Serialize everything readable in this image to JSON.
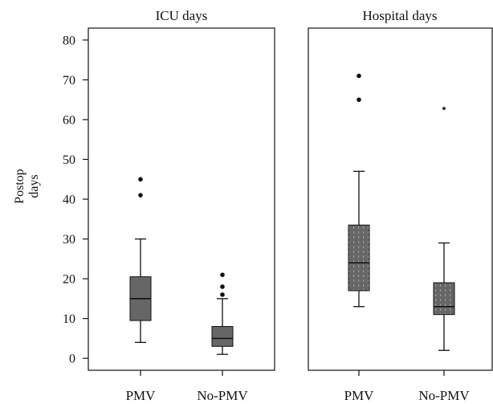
{
  "chart_data": {
    "type": "boxplot",
    "ylabel_lines": [
      "Postop",
      "days"
    ],
    "ylim": [
      -3,
      83
    ],
    "y_ticks": [
      0,
      10,
      20,
      30,
      40,
      50,
      60,
      70,
      80
    ],
    "categories": [
      "PMV",
      "No-PMV"
    ],
    "panels": [
      {
        "title": "ICU days",
        "box_style": "solid",
        "boxes": [
          {
            "category": "PMV",
            "whisker_low": 4,
            "q1": 9.5,
            "median": 15,
            "q3": 20.5,
            "whisker_high": 30,
            "outliers": [
              {
                "value": 41,
                "marker": "dot"
              },
              {
                "value": 45,
                "marker": "dot"
              }
            ]
          },
          {
            "category": "No-PMV",
            "whisker_low": 1,
            "q1": 3,
            "median": 5,
            "q3": 8,
            "whisker_high": 15,
            "outliers": [
              {
                "value": 16,
                "marker": "dot"
              },
              {
                "value": 18,
                "marker": "dot"
              },
              {
                "value": 21,
                "marker": "dot"
              }
            ]
          }
        ]
      },
      {
        "title": "Hospital days",
        "box_style": "dotted",
        "boxes": [
          {
            "category": "PMV",
            "whisker_low": 13,
            "q1": 17,
            "median": 24,
            "q3": 33.5,
            "whisker_high": 47,
            "outliers": [
              {
                "value": 65,
                "marker": "dot"
              },
              {
                "value": 71,
                "marker": "dot"
              }
            ]
          },
          {
            "category": "No-PMV",
            "whisker_low": 2,
            "q1": 11,
            "median": 13,
            "q3": 19,
            "whisker_high": 29,
            "outliers": [
              {
                "value": 63,
                "marker": "star"
              }
            ]
          }
        ]
      }
    ]
  },
  "colors": {
    "box_fill": "#666666",
    "box_stroke": "#111111",
    "dot_pattern": "#9a9a9a",
    "text": "#111111"
  }
}
